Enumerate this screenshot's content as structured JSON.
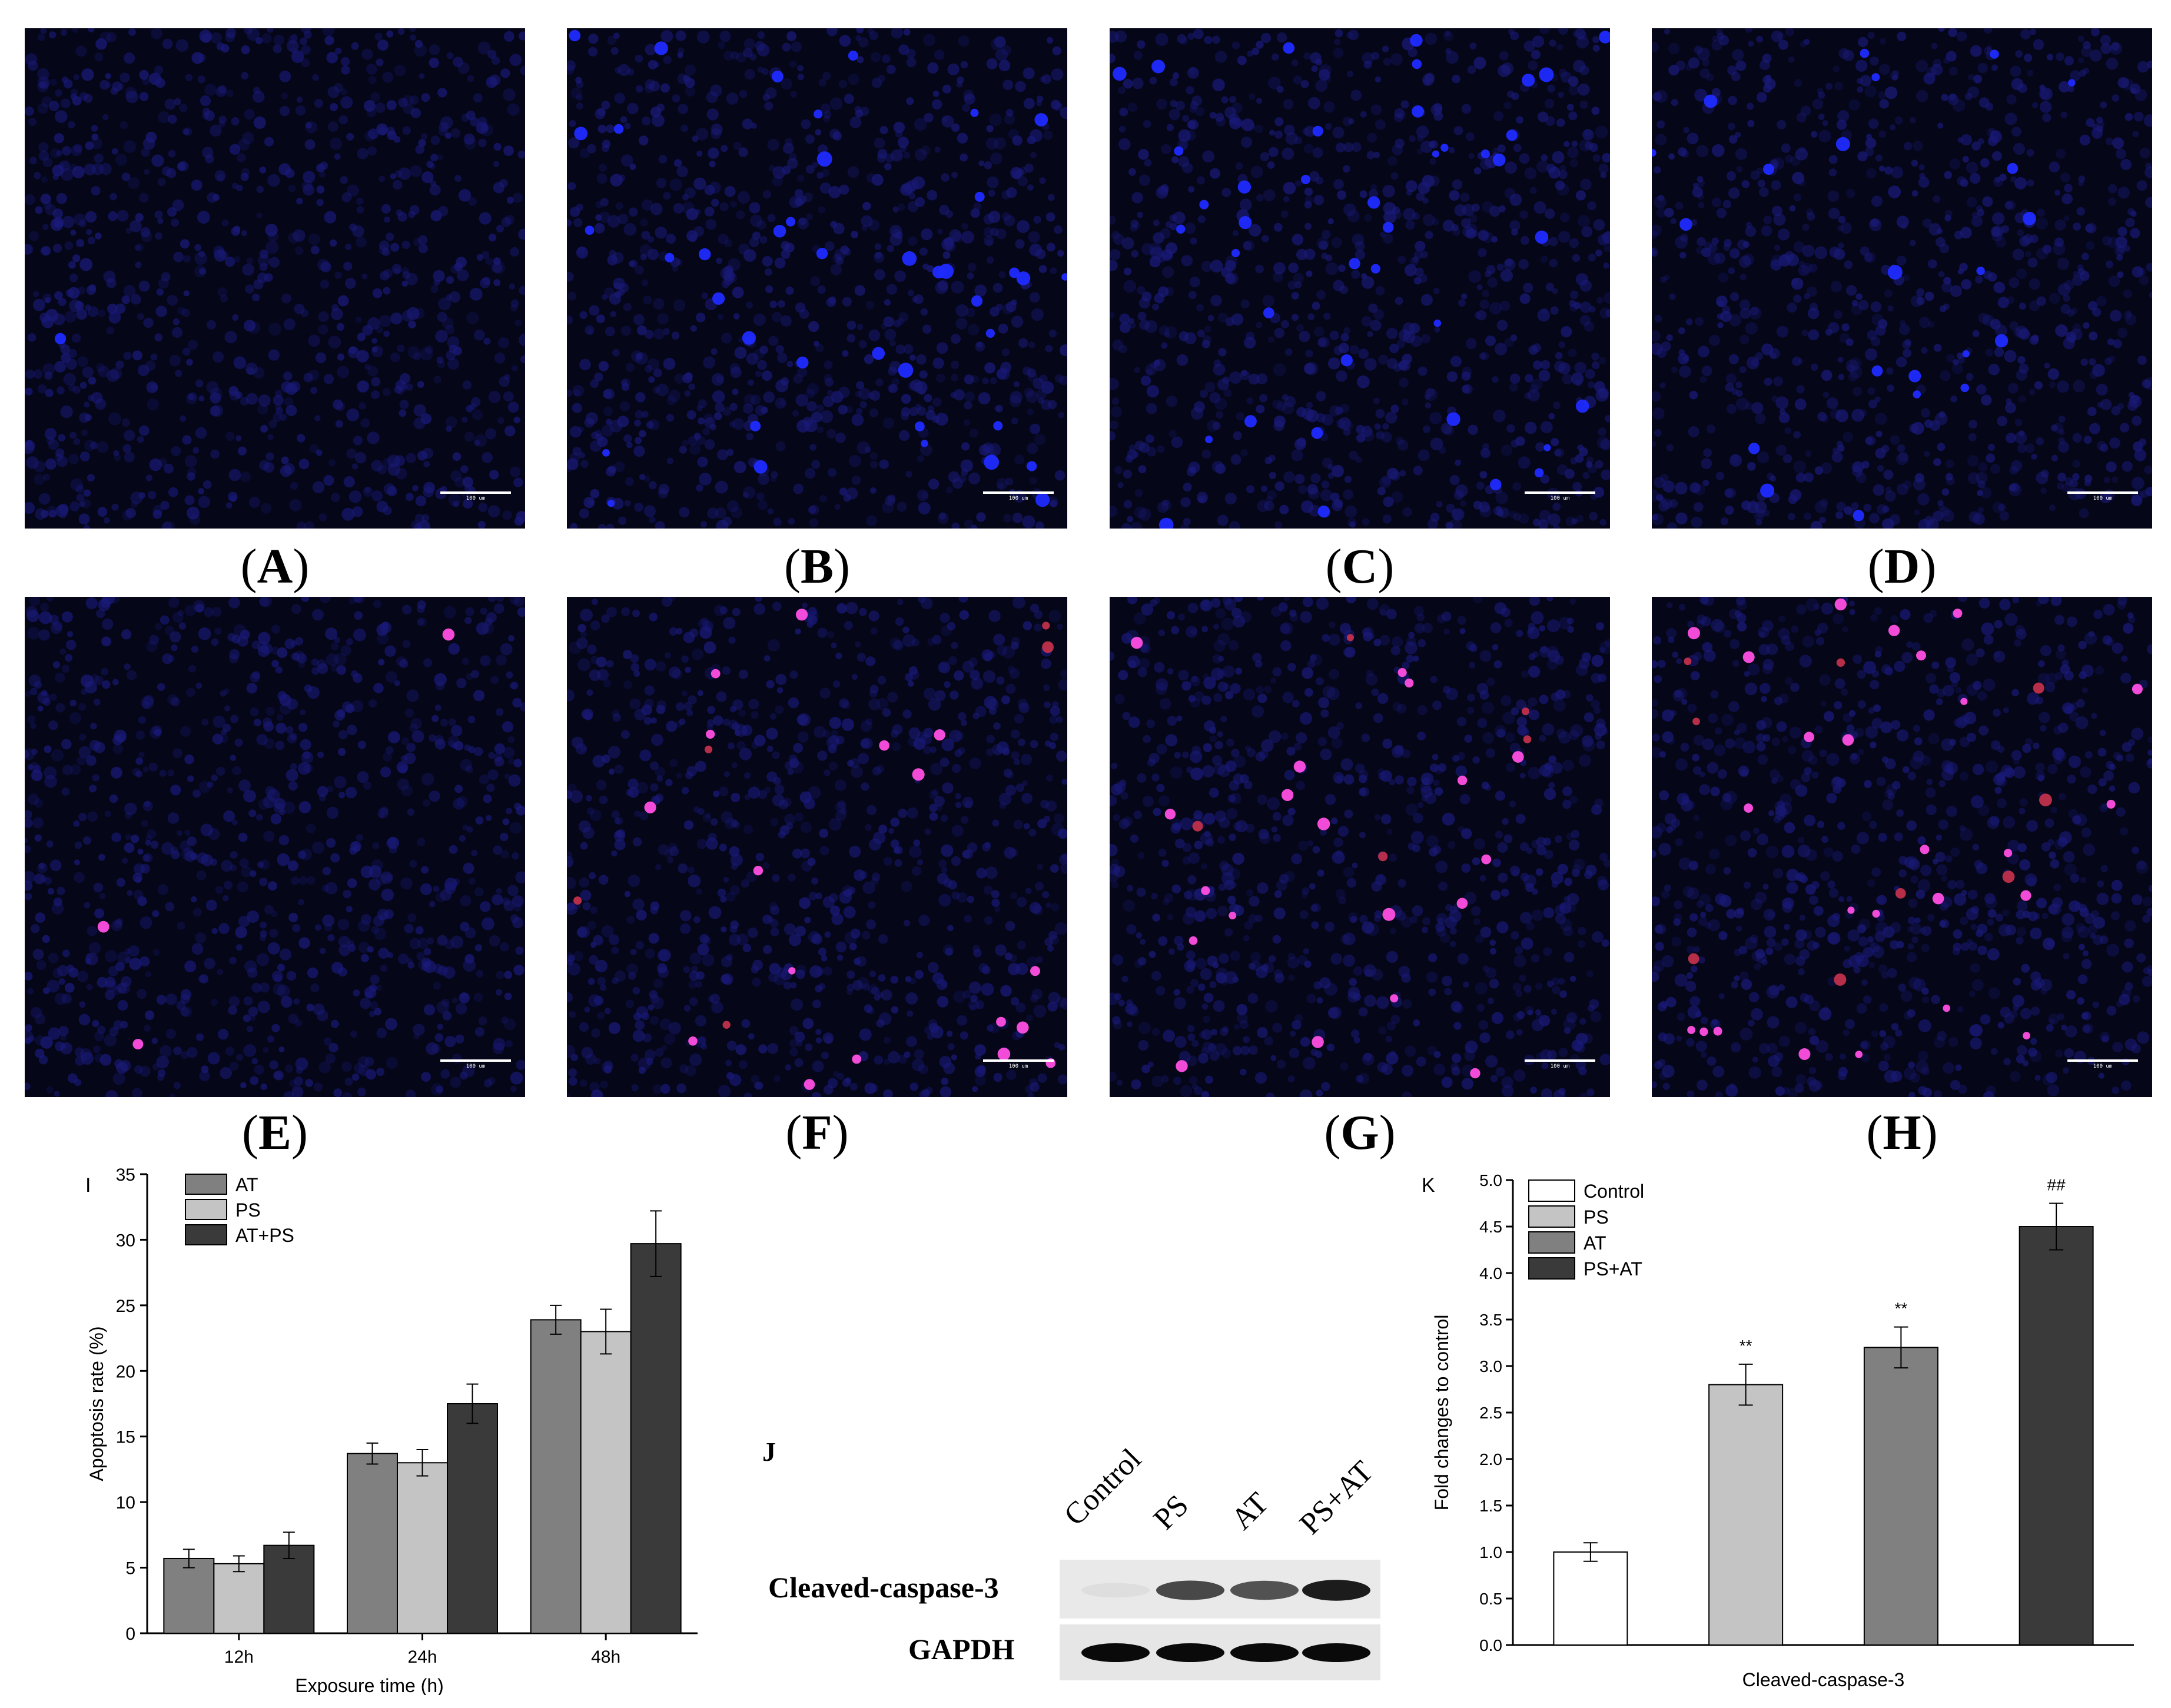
{
  "panels_top": [
    {
      "letter": "A",
      "stain": "blue",
      "apoptotic": 1
    },
    {
      "letter": "B",
      "stain": "blue",
      "apoptotic": 40
    },
    {
      "letter": "C",
      "stain": "blue",
      "apoptotic": 40
    },
    {
      "letter": "D",
      "stain": "blue",
      "apoptotic": 22
    }
  ],
  "panels_bottom": [
    {
      "letter": "E",
      "stain": "merge",
      "apoptotic": 3
    },
    {
      "letter": "F",
      "stain": "merge",
      "apoptotic": 22
    },
    {
      "letter": "G",
      "stain": "merge",
      "apoptotic": 24
    },
    {
      "letter": "H",
      "stain": "merge",
      "apoptotic": 34
    }
  ],
  "scale_bar_text": "100 um",
  "colors": {
    "nucleus_dim": "#1a1a7a",
    "nucleus_bright": "#1f2bff",
    "tunel": "#ff4fe3",
    "tunel_red": "#c0304a",
    "bar_at": "#808080",
    "bar_ps": "#c4c4c4",
    "bar_atps": "#3a3a3a",
    "bar_control": "#ffffff"
  },
  "chart_data": [
    {
      "panel": "I",
      "type": "bar",
      "categories": [
        "12h",
        "24h",
        "48h"
      ],
      "series": [
        {
          "name": "AT",
          "values": [
            5.7,
            13.7,
            23.9
          ],
          "errors": [
            0.7,
            0.8,
            1.1
          ]
        },
        {
          "name": "PS",
          "values": [
            5.3,
            13.0,
            23.0
          ],
          "errors": [
            0.6,
            1.0,
            1.7
          ]
        },
        {
          "name": "AT+PS",
          "values": [
            6.7,
            17.5,
            29.7
          ],
          "errors": [
            1.0,
            1.5,
            2.5
          ]
        }
      ],
      "xlabel": "Exposure time (h)",
      "ylabel": "Apoptosis rate (%)",
      "ylim": [
        0,
        35
      ],
      "yticks": [
        "0",
        "5",
        "10",
        "15",
        "20",
        "25",
        "30",
        "35"
      ],
      "legend_position": "top-left"
    },
    {
      "panel": "K",
      "type": "bar",
      "categories": [
        "Control",
        "PS",
        "AT",
        "PS+AT"
      ],
      "values": [
        1.0,
        2.8,
        3.2,
        4.5
      ],
      "errors": [
        0.1,
        0.22,
        0.22,
        0.25
      ],
      "annotations": [
        "",
        "**",
        "**",
        "##"
      ],
      "xlabel": "Cleaved-caspase-3",
      "ylabel": "Fold changes to control",
      "ylim": [
        0,
        5
      ],
      "yticks": [
        "0.0",
        "0.5",
        "1.0",
        "1.5",
        "2.0",
        "2.5",
        "3.0",
        "3.5",
        "4.0",
        "4.5",
        "5.0"
      ],
      "legend_position": "top-left"
    }
  ],
  "western_blot": {
    "panel": "J",
    "lanes": [
      "Control",
      "PS",
      "AT",
      "PS+AT"
    ],
    "rows": [
      "Cleaved-caspase-3",
      "GAPDH"
    ],
    "caspase_intensity": [
      0.05,
      0.75,
      0.7,
      0.95
    ],
    "gapdh_intensity": [
      1.0,
      1.0,
      1.0,
      1.0
    ]
  }
}
